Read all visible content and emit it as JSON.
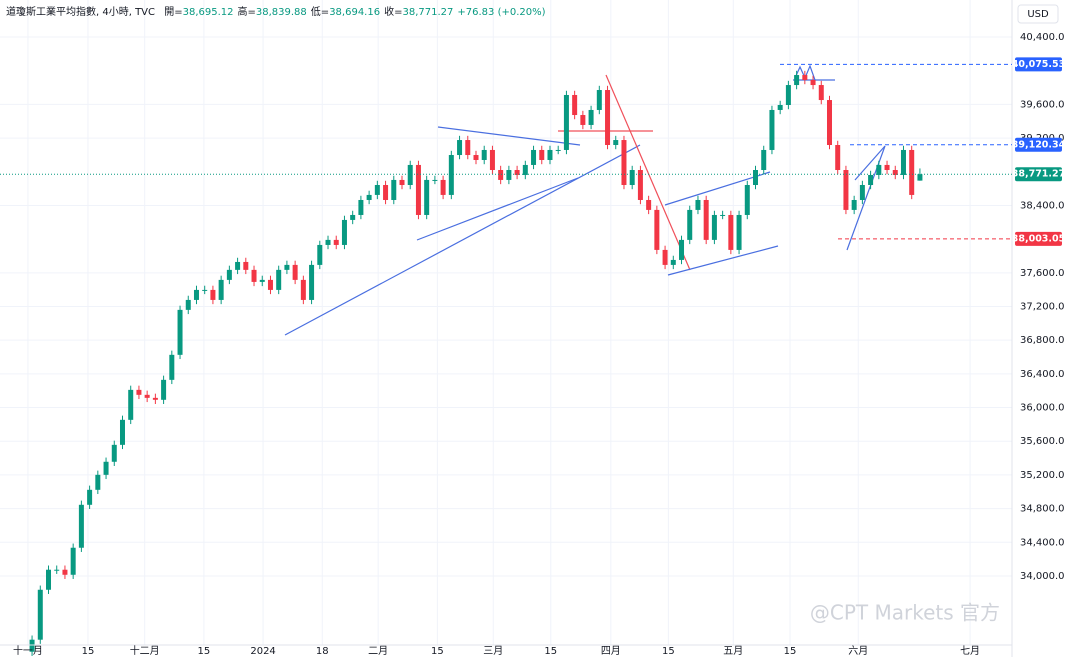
{
  "chart_data": {
    "type": "candlestick",
    "title": "道瓊斯工業平均指數, 4小時, TVC",
    "legend_prefixes": [
      "開=",
      "高=",
      "低=",
      "收="
    ],
    "legend_values": [
      "38,695.12",
      "38,839.88",
      "38,694.16",
      "38,771.27"
    ],
    "change": "+76.83 (+0.20%)",
    "currency": "USD",
    "watermark": "@CPT Markets 官方",
    "up_color": "#089981",
    "down_color": "#f23645",
    "grid": true,
    "xlim": [
      -3.9,
      119.2
    ],
    "ylim": [
      33180,
      40840
    ],
    "xticks": [
      {
        "value": -0.5,
        "label": "十一月"
      },
      {
        "value": 6.8,
        "label": "15"
      },
      {
        "value": 13.7,
        "label": "十二月"
      },
      {
        "value": 20.9,
        "label": "15"
      },
      {
        "value": 28.1,
        "label": "2024"
      },
      {
        "value": 35.3,
        "label": "18"
      },
      {
        "value": 42.1,
        "label": "二月"
      },
      {
        "value": 49.3,
        "label": "15"
      },
      {
        "value": 56.1,
        "label": "三月"
      },
      {
        "value": 63.1,
        "label": "15"
      },
      {
        "value": 70.4,
        "label": "四月"
      },
      {
        "value": 77.4,
        "label": "15"
      },
      {
        "value": 85.3,
        "label": "五月"
      },
      {
        "value": 92.2,
        "label": "15"
      },
      {
        "value": 100.5,
        "label": "六月"
      },
      {
        "value": 114.1,
        "label": "七月"
      }
    ],
    "yticks": [
      {
        "value": 40400,
        "label": "40,400.00"
      },
      {
        "value": 39600,
        "label": "39,600.00"
      },
      {
        "value": 39200,
        "label": "39,200.00"
      },
      {
        "value": 38400,
        "label": "38,400.00"
      },
      {
        "value": 37600,
        "label": "37,600.00"
      },
      {
        "value": 37200,
        "label": "37,200.00"
      },
      {
        "value": 36800,
        "label": "36,800.00"
      },
      {
        "value": 36400,
        "label": "36,400.00"
      },
      {
        "value": 36000,
        "label": "36,000.00"
      },
      {
        "value": 35600,
        "label": "35,600.00"
      },
      {
        "value": 35200,
        "label": "35,200.00"
      },
      {
        "value": 34800,
        "label": "34,800.00"
      },
      {
        "value": 34400,
        "label": "34,400.00"
      },
      {
        "value": 34000,
        "label": "34,000.00"
      }
    ],
    "price_lines": [
      {
        "value": 40075.53,
        "label": "40,075.53",
        "color": "#2962ff",
        "style": "dashed"
      },
      {
        "value": 39120.34,
        "label": "39,120.34",
        "color": "#2962ff",
        "style": "dashed"
      },
      {
        "value": 38771.27,
        "label": "38,771.27",
        "color": "#089981",
        "style": "dotted"
      },
      {
        "value": 38003.05,
        "label": "38,003.05",
        "color": "#f23645",
        "style": "dashed"
      }
    ],
    "open": [
      33100,
      33243,
      33836,
      34074,
      34074,
      34014,
      34335,
      34845,
      35023,
      35201,
      35356,
      35557,
      35854,
      36210,
      36151,
      36115,
      36092,
      36329,
      36626,
      37160,
      37278,
      37397,
      37397,
      37278,
      37516,
      37635,
      37729,
      37635,
      37492,
      37516,
      37397,
      37635,
      37694,
      37516,
      37278,
      37694,
      37931,
      37991,
      37931,
      38228,
      38287,
      38465,
      38525,
      38643,
      38465,
      38703,
      38643,
      38881,
      38287,
      38703,
      38703,
      38525,
      38999,
      39177,
      38999,
      38940,
      39059,
      38821,
      38703,
      38821,
      38762,
      38881,
      39059,
      38940,
      39059,
      39059,
      39712,
      39474,
      39356,
      39534,
      39771,
      39118,
      39177,
      38643,
      38821,
      38465,
      38347,
      37872,
      37694,
      37753,
      37991,
      38347,
      38465,
      37991,
      38287,
      38287,
      37872,
      38287,
      38643,
      38821,
      39059,
      39534,
      39593,
      39830,
      39949,
      39890,
      39830,
      39652,
      39118,
      38821,
      38347,
      38465,
      38643,
      38762,
      38881,
      38821,
      38762,
      39059,
      38695.12
    ],
    "high": [
      33293,
      33886,
      34124,
      34124,
      34124,
      34385,
      34895,
      35073,
      35251,
      35406,
      35607,
      35904,
      36260,
      36260,
      36201,
      36165,
      36379,
      36676,
      37210,
      37328,
      37447,
      37447,
      37447,
      37566,
      37685,
      37779,
      37779,
      37685,
      37566,
      37566,
      37685,
      37744,
      37744,
      37566,
      37744,
      37981,
      38041,
      38041,
      38278,
      38337,
      38515,
      38575,
      38693,
      38693,
      38753,
      38753,
      38931,
      38931,
      38753,
      38753,
      38753,
      39049,
      39227,
      39227,
      39049,
      39109,
      39109,
      38871,
      38871,
      38871,
      38931,
      39109,
      39109,
      39109,
      39109,
      39762,
      39762,
      39524,
      39584,
      39821,
      39821,
      39227,
      39227,
      38871,
      38871,
      38515,
      38397,
      37922,
      37803,
      38041,
      38397,
      38515,
      38515,
      38337,
      38337,
      38337,
      38337,
      38693,
      38871,
      39109,
      39584,
      39643,
      39880,
      39999,
      39999,
      39940,
      39880,
      39702,
      39168,
      38871,
      38515,
      38693,
      38812,
      38931,
      38931,
      38871,
      39109,
      39109,
      38839.88
    ],
    "low": [
      33050,
      33193,
      33786,
      34024,
      33964,
      33964,
      34285,
      34795,
      34973,
      35151,
      35306,
      35507,
      35804,
      36101,
      36065,
      36042,
      36042,
      36279,
      36576,
      37110,
      37228,
      37347,
      37228,
      37228,
      37466,
      37585,
      37585,
      37442,
      37442,
      37347,
      37347,
      37585,
      37466,
      37228,
      37228,
      37644,
      37881,
      37881,
      37881,
      38178,
      38237,
      38415,
      38475,
      38415,
      38415,
      38593,
      38593,
      38237,
      38237,
      38653,
      38475,
      38475,
      38949,
      38949,
      38890,
      38890,
      38771,
      38653,
      38653,
      38712,
      38712,
      38831,
      38890,
      38890,
      39009,
      39009,
      39424,
      39306,
      39306,
      39484,
      39068,
      39068,
      38593,
      38593,
      38415,
      38297,
      37822,
      37644,
      37644,
      37703,
      37941,
      38297,
      37941,
      37941,
      38237,
      37822,
      37822,
      38237,
      38593,
      38771,
      39009,
      39484,
      39543,
      39780,
      39840,
      39780,
      39602,
      39068,
      38771,
      38297,
      38297,
      38415,
      38593,
      38712,
      38771,
      38712,
      38712,
      38475,
      38694.16
    ],
    "close": [
      33243,
      33836,
      34074,
      34074,
      34014,
      34335,
      34845,
      35023,
      35201,
      35356,
      35557,
      35854,
      36210,
      36151,
      36115,
      36092,
      36329,
      36626,
      37160,
      37278,
      37397,
      37397,
      37278,
      37516,
      37635,
      37729,
      37635,
      37492,
      37516,
      37397,
      37635,
      37694,
      37516,
      37278,
      37694,
      37931,
      37991,
      37931,
      38228,
      38287,
      38465,
      38525,
      38643,
      38465,
      38703,
      38643,
      38881,
      38287,
      38703,
      38703,
      38525,
      38999,
      39177,
      38999,
      38940,
      39059,
      38821,
      38703,
      38821,
      38762,
      38881,
      39059,
      38940,
      39059,
      39059,
      39712,
      39474,
      39356,
      39534,
      39771,
      39118,
      39177,
      38643,
      38821,
      38465,
      38347,
      37872,
      37694,
      37753,
      37991,
      38347,
      38465,
      37991,
      38287,
      38287,
      37872,
      38287,
      38643,
      38821,
      39059,
      39534,
      39593,
      39830,
      39949,
      39890,
      39830,
      39652,
      39118,
      38821,
      38347,
      38465,
      38643,
      38762,
      38881,
      38821,
      38762,
      39059,
      38525,
      38771.27
    ]
  }
}
